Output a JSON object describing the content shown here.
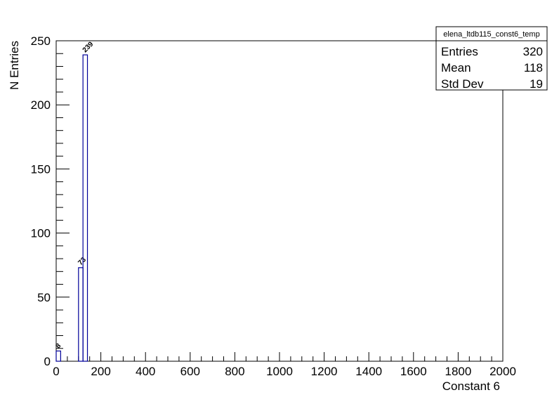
{
  "chart_data": {
    "type": "histogram",
    "bins": [
      0,
      20,
      40,
      60,
      80,
      100,
      120,
      140
    ],
    "values": [
      8,
      0,
      0,
      0,
      0,
      73,
      239
    ],
    "color": "#000099",
    "xlabel": "Constant 6",
    "ylabel": "N Entries",
    "xlim": [
      0,
      2000
    ],
    "ylim": [
      0,
      250
    ],
    "xticks": [
      0,
      200,
      400,
      600,
      800,
      1000,
      1200,
      1400,
      1600,
      1800,
      2000
    ],
    "yticks": [
      0,
      50,
      100,
      150,
      200,
      250
    ],
    "x_minor_divisions": 4,
    "y_minor_divisions": 5,
    "stats": {
      "title": "elena_ltdb115_const6_temp",
      "rows": [
        {
          "label": "Entries",
          "value": 320
        },
        {
          "label": "Mean",
          "value": 118
        },
        {
          "label": "Std Dev",
          "value": 19
        }
      ]
    }
  }
}
